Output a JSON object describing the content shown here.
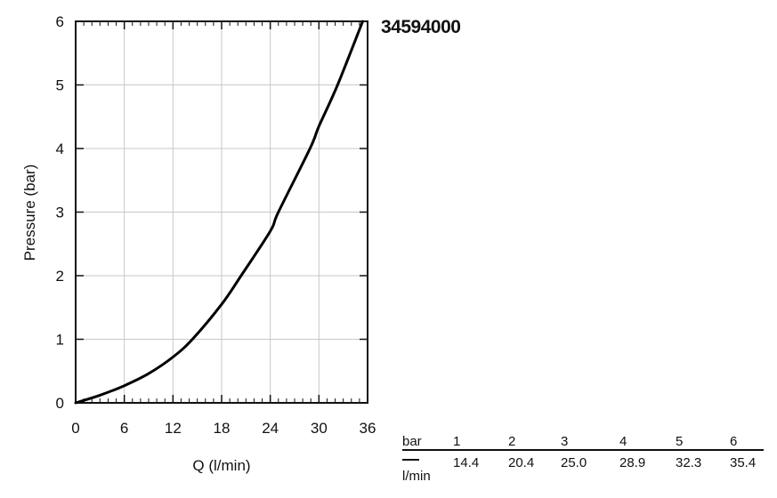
{
  "product_code": "34594000",
  "chart_data": {
    "type": "line",
    "title": "",
    "xlabel": "Q (l/min)",
    "ylabel": "Pressure (bar)",
    "xlim": [
      0,
      36
    ],
    "ylim": [
      0,
      6
    ],
    "x_ticks": [
      "0",
      "6",
      "12",
      "18",
      "24",
      "30",
      "36"
    ],
    "y_ticks": [
      "0",
      "1",
      "2",
      "3",
      "4",
      "5",
      "6"
    ],
    "grid": true,
    "series": [
      {
        "x": [
          0,
          3,
          6,
          9,
          12,
          14.4,
          18,
          20.4,
          24,
          25,
          28.9,
          30,
          32.3,
          35.4
        ],
        "y": [
          0,
          0.12,
          0.27,
          0.46,
          0.72,
          1,
          1.55,
          2,
          2.7,
          3,
          4,
          4.35,
          5,
          6
        ]
      }
    ]
  },
  "table": {
    "header_label": "bar",
    "unit_label": "l/min",
    "pressures": [
      "1",
      "2",
      "3",
      "4",
      "5",
      "6"
    ],
    "flows": [
      "14.4",
      "20.4",
      "25.0",
      "28.9",
      "32.3",
      "35.4"
    ]
  }
}
